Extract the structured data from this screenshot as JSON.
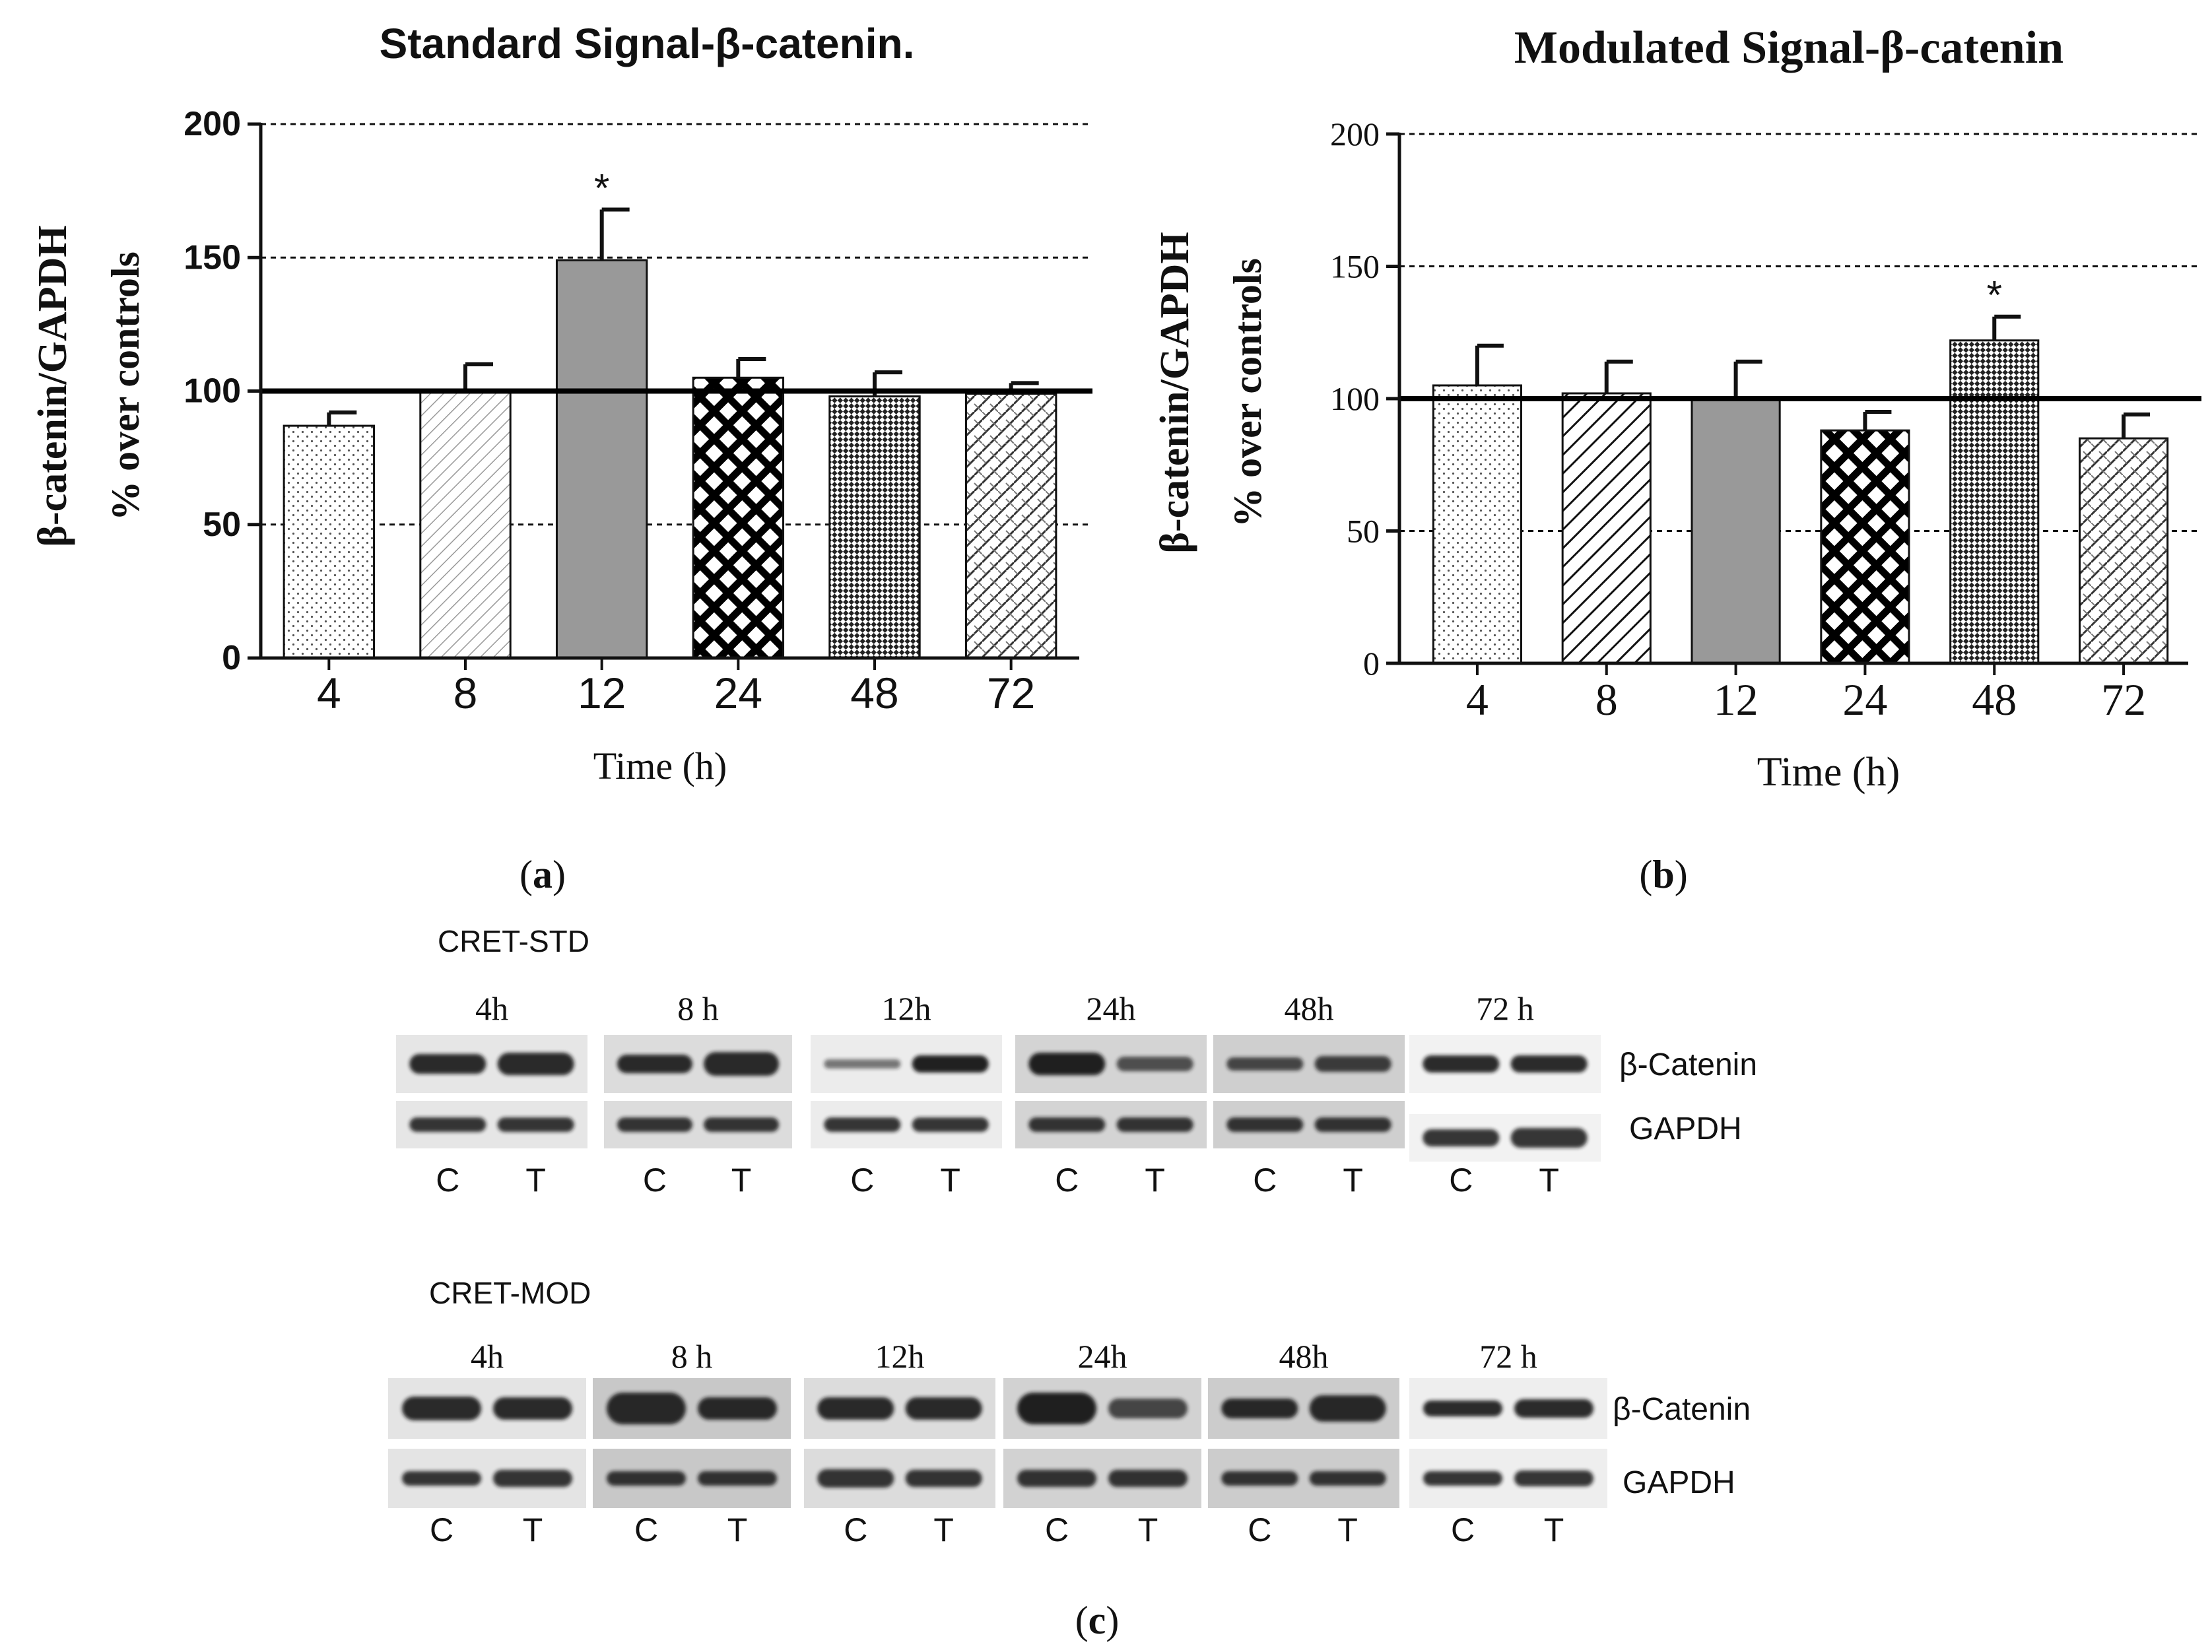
{
  "chart_data": [
    {
      "type": "bar",
      "panel": "(a)",
      "title": "Standard Signal-β-catenin.",
      "ylabel_line1": "β-catenin/GAPDH",
      "ylabel_line2": "% over controls",
      "xlabel": "Time (h)",
      "categories": [
        "4",
        "8",
        "12",
        "24",
        "48",
        "72"
      ],
      "values": [
        87,
        100,
        149,
        105,
        98,
        99
      ],
      "errors": [
        5,
        10,
        19,
        7,
        9,
        4
      ],
      "significance": [
        "",
        "",
        "*",
        "",
        "",
        ""
      ],
      "patterns": [
        "dots",
        "diag-light",
        "solid",
        "crosshatch",
        "check-fine",
        "hatch-mixed"
      ],
      "ylim": [
        0,
        200
      ],
      "yticks": [
        "0",
        "50",
        "100",
        "150",
        "200"
      ],
      "reference_line": 100,
      "grid": "dashed at 50, 150, 200"
    },
    {
      "type": "bar",
      "panel": "(b)",
      "title": "Modulated Signal-β-catenin",
      "ylabel_line1": "β-catenin/GAPDH",
      "ylabel_line2": "% over controls",
      "xlabel": "Time (h)",
      "categories": [
        "4",
        "8",
        "12",
        "24",
        "48",
        "72"
      ],
      "values": [
        105,
        102,
        100,
        88,
        122,
        85
      ],
      "errors": [
        15,
        12,
        14,
        7,
        9,
        9
      ],
      "significance": [
        "",
        "",
        "",
        "",
        "*",
        ""
      ],
      "patterns": [
        "dots",
        "diag-dense",
        "solid",
        "crosshatch",
        "check-fine",
        "hatch-mixed"
      ],
      "ylim": [
        0,
        200
      ],
      "yticks": [
        "0",
        "50",
        "100",
        "150",
        "200"
      ],
      "reference_line": 100,
      "grid": "dashed at 50, 150, 200"
    }
  ],
  "blots": {
    "label": "(c)",
    "band_labels": {
      "catenin": "β-Catenin",
      "gapdh": "GAPDH"
    },
    "lane_labels": [
      "C",
      "T"
    ],
    "std": {
      "title": "CRET-STD",
      "times": [
        "4h",
        "8 h",
        "12h",
        "24h",
        "48h",
        "72 h"
      ]
    },
    "mod": {
      "title": "CRET-MOD",
      "times": [
        "4h",
        "8 h",
        "12h",
        "24h",
        "48h",
        "72 h"
      ]
    }
  }
}
